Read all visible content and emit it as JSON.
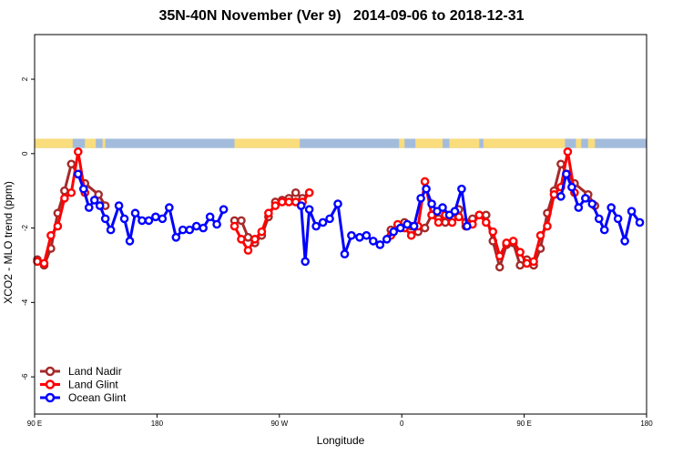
{
  "chart_data": {
    "type": "line",
    "title": "35N-40N November (Ver 9)   2014-09-06 to 2018-12-31",
    "xlabel": "Longitude",
    "ylabel": "XCO2 - MLO trend (ppm)",
    "xlim": [
      0,
      450
    ],
    "ylim": [
      -7,
      3.2
    ],
    "x_ticks": [
      {
        "value": 0,
        "label": "90 E"
      },
      {
        "value": 90,
        "label": "180"
      },
      {
        "value": 180,
        "label": "90 W"
      },
      {
        "value": 270,
        "label": "0"
      },
      {
        "value": 360,
        "label": "90 E"
      },
      {
        "value": 450,
        "label": "180"
      }
    ],
    "y_ticks": [
      {
        "value": -6,
        "label": "-6"
      },
      {
        "value": -4,
        "label": "-4"
      },
      {
        "value": -2,
        "label": "-2"
      },
      {
        "value": 0,
        "label": "0"
      },
      {
        "value": 2,
        "label": "2"
      }
    ],
    "land_ocean_strip": {
      "y_range": [
        0.15,
        0.4
      ],
      "ocean_color": "#a3bcdc",
      "land_color": "#f9dc7c",
      "land_segments": [
        [
          0,
          28
        ],
        [
          37,
          45
        ],
        [
          50,
          52
        ],
        [
          147,
          195
        ],
        [
          268,
          272
        ],
        [
          280,
          300
        ],
        [
          305,
          327
        ],
        [
          330,
          390
        ],
        [
          398,
          402
        ],
        [
          407,
          412
        ]
      ]
    },
    "legend_position": "bottom-left",
    "series": [
      {
        "name": "Land Nadir",
        "color": "#a52a2a",
        "points": [
          [
            2,
            -2.85
          ],
          [
            7,
            -3.0
          ],
          [
            12,
            -2.55
          ],
          [
            17,
            -1.6
          ],
          [
            22,
            -1.0
          ],
          [
            27,
            -0.28
          ],
          [
            32,
            -0.55
          ],
          [
            37,
            -0.8
          ],
          [
            47,
            -1.1
          ],
          [
            52,
            -1.4
          ],
          [
            147,
            -1.8
          ],
          [
            152,
            -1.8
          ],
          [
            157,
            -2.25
          ],
          [
            162,
            -2.4
          ],
          [
            167,
            -2.2
          ],
          [
            172,
            -1.7
          ],
          [
            177,
            -1.3
          ],
          [
            182,
            -1.25
          ],
          [
            187,
            -1.2
          ],
          [
            192,
            -1.05
          ],
          [
            197,
            -1.2
          ],
          [
            202,
            -1.05
          ],
          [
            262,
            -2.05
          ],
          [
            267,
            -1.95
          ],
          [
            272,
            -1.85
          ],
          [
            277,
            -1.95
          ],
          [
            282,
            -2.1
          ],
          [
            287,
            -2.0
          ],
          [
            292,
            -1.65
          ],
          [
            297,
            -1.75
          ],
          [
            302,
            -1.85
          ],
          [
            307,
            -1.75
          ],
          [
            312,
            -1.5
          ],
          [
            317,
            -1.95
          ],
          [
            322,
            -1.75
          ],
          [
            327,
            -1.65
          ],
          [
            332,
            -1.65
          ],
          [
            337,
            -2.35
          ],
          [
            342,
            -3.05
          ],
          [
            347,
            -2.45
          ],
          [
            352,
            -2.4
          ],
          [
            357,
            -3.0
          ],
          [
            362,
            -2.85
          ],
          [
            367,
            -3.0
          ],
          [
            372,
            -2.55
          ],
          [
            377,
            -1.6
          ],
          [
            382,
            -1.0
          ],
          [
            387,
            -0.28
          ],
          [
            392,
            -0.55
          ],
          [
            397,
            -0.8
          ],
          [
            407,
            -1.1
          ],
          [
            412,
            -1.4
          ]
        ]
      },
      {
        "name": "Land Glint",
        "color": "#ff0000",
        "points": [
          [
            2,
            -2.9
          ],
          [
            7,
            -2.95
          ],
          [
            12,
            -2.2
          ],
          [
            17,
            -1.95
          ],
          [
            22,
            -1.2
          ],
          [
            27,
            -1.05
          ],
          [
            32,
            0.05
          ],
          [
            37,
            -1.05
          ],
          [
            147,
            -1.95
          ],
          [
            152,
            -2.3
          ],
          [
            157,
            -2.6
          ],
          [
            162,
            -2.3
          ],
          [
            167,
            -2.1
          ],
          [
            172,
            -1.6
          ],
          [
            177,
            -1.4
          ],
          [
            182,
            -1.3
          ],
          [
            187,
            -1.3
          ],
          [
            192,
            -1.3
          ],
          [
            197,
            -1.3
          ],
          [
            202,
            -1.05
          ],
          [
            262,
            -2.2
          ],
          [
            267,
            -1.9
          ],
          [
            272,
            -2.0
          ],
          [
            277,
            -2.2
          ],
          [
            282,
            -1.95
          ],
          [
            287,
            -0.75
          ],
          [
            292,
            -1.65
          ],
          [
            297,
            -1.85
          ],
          [
            302,
            -1.65
          ],
          [
            307,
            -1.85
          ],
          [
            312,
            -1.7
          ],
          [
            317,
            -1.85
          ],
          [
            322,
            -1.9
          ],
          [
            327,
            -1.65
          ],
          [
            332,
            -1.85
          ],
          [
            337,
            -2.1
          ],
          [
            342,
            -2.75
          ],
          [
            347,
            -2.4
          ],
          [
            352,
            -2.35
          ],
          [
            357,
            -2.65
          ],
          [
            362,
            -2.95
          ],
          [
            367,
            -2.9
          ],
          [
            372,
            -2.2
          ],
          [
            377,
            -1.95
          ],
          [
            382,
            -1.1
          ],
          [
            387,
            -0.9
          ],
          [
            392,
            0.05
          ],
          [
            397,
            -1.05
          ]
        ]
      },
      {
        "name": "Ocean Glint",
        "color": "#0000ff",
        "points": [
          [
            32,
            -0.55
          ],
          [
            36,
            -0.95
          ],
          [
            40,
            -1.45
          ],
          [
            44,
            -1.25
          ],
          [
            48,
            -1.4
          ],
          [
            52,
            -1.75
          ],
          [
            56,
            -2.05
          ],
          [
            62,
            -1.4
          ],
          [
            66,
            -1.75
          ],
          [
            70,
            -2.35
          ],
          [
            74,
            -1.6
          ],
          [
            79,
            -1.8
          ],
          [
            84,
            -1.8
          ],
          [
            89,
            -1.7
          ],
          [
            94,
            -1.75
          ],
          [
            99,
            -1.45
          ],
          [
            104,
            -2.25
          ],
          [
            109,
            -2.05
          ],
          [
            114,
            -2.05
          ],
          [
            119,
            -1.95
          ],
          [
            124,
            -2.0
          ],
          [
            129,
            -1.7
          ],
          [
            134,
            -1.9
          ],
          [
            139,
            -1.5
          ],
          [
            196,
            -1.4
          ],
          [
            199,
            -2.9
          ],
          [
            202,
            -1.5
          ],
          [
            207,
            -1.95
          ],
          [
            212,
            -1.85
          ],
          [
            217,
            -1.75
          ],
          [
            223,
            -1.35
          ],
          [
            228,
            -2.7
          ],
          [
            233,
            -2.2
          ],
          [
            239,
            -2.25
          ],
          [
            244,
            -2.2
          ],
          [
            249,
            -2.35
          ],
          [
            254,
            -2.45
          ],
          [
            259,
            -2.3
          ],
          [
            264,
            -2.1
          ],
          [
            269,
            -2.0
          ],
          [
            274,
            -1.9
          ],
          [
            279,
            -1.95
          ],
          [
            284,
            -1.2
          ],
          [
            288,
            -0.95
          ],
          [
            292,
            -1.35
          ],
          [
            296,
            -1.55
          ],
          [
            300,
            -1.45
          ],
          [
            305,
            -1.65
          ],
          [
            309,
            -1.55
          ],
          [
            314,
            -0.95
          ],
          [
            318,
            -1.95
          ],
          [
            387,
            -1.15
          ],
          [
            391,
            -0.55
          ],
          [
            395,
            -0.9
          ],
          [
            400,
            -1.45
          ],
          [
            405,
            -1.2
          ],
          [
            410,
            -1.35
          ],
          [
            415,
            -1.75
          ],
          [
            419,
            -2.05
          ],
          [
            424,
            -1.45
          ],
          [
            429,
            -1.75
          ],
          [
            434,
            -2.35
          ],
          [
            439,
            -1.55
          ],
          [
            445,
            -1.85
          ]
        ]
      }
    ]
  }
}
